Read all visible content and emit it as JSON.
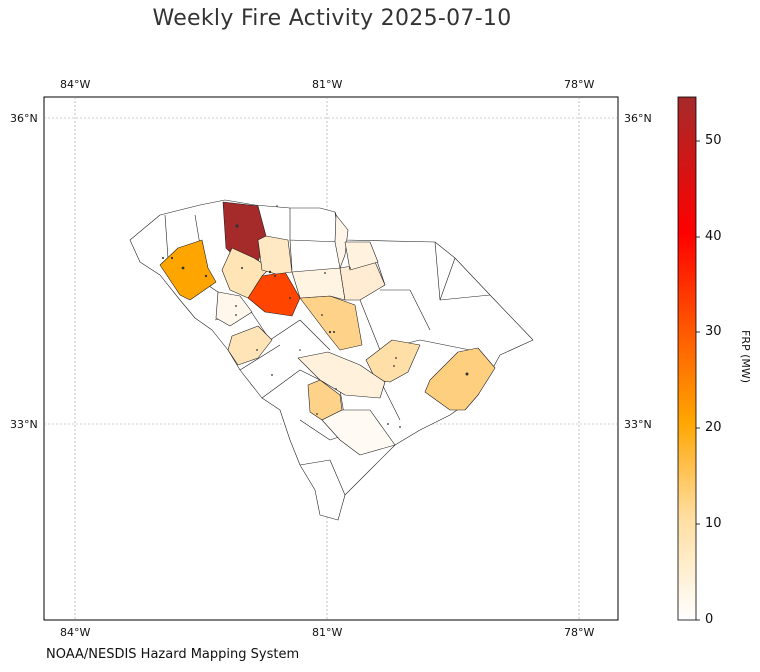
{
  "title": "Weekly Fire Activity 2025-07-10",
  "source": "NOAA/NESDIS Hazard Mapping System",
  "map": {
    "lon_ticks": [
      "84°W",
      "81°W",
      "78°W"
    ],
    "lat_ticks": [
      "36°N",
      "33°N"
    ],
    "gridlines": true
  },
  "colorbar": {
    "label": "FRP (MW)",
    "ticks": [
      "0",
      "10",
      "20",
      "30",
      "40",
      "50"
    ],
    "range": [
      0,
      54.5
    ],
    "colors": [
      "#ffffff",
      "#ffd999",
      "#ffa500",
      "#ff4500",
      "#ff0000",
      "#a52a2a"
    ]
  }
}
